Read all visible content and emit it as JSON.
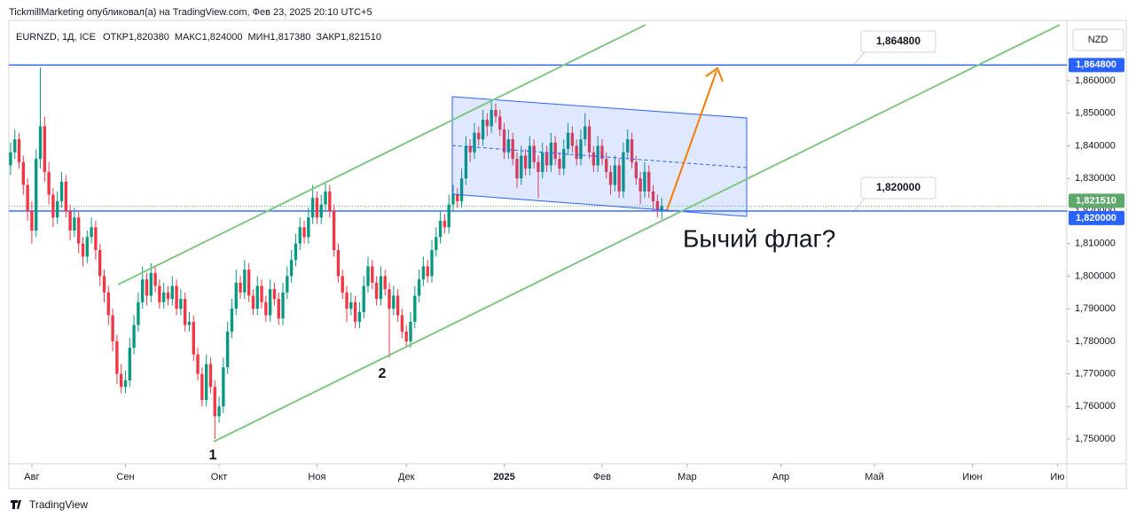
{
  "header": {
    "attribution": "TickmillMarketing опубликовал(а) на TradingView.com, Фев 23, 2025 20:10 UTC+5",
    "symbol": "EURNZD, 1Д, ICE",
    "ohlc": [
      {
        "label": "ОТКР",
        "value": "1,820380"
      },
      {
        "label": "МАКС",
        "value": "1,824000"
      },
      {
        "label": "МИН",
        "value": "1,817380"
      },
      {
        "label": "ЗАКР",
        "value": "1,821510"
      }
    ],
    "currency": "NZD",
    "footer": "TradingView"
  },
  "chart_data": {
    "type": "candlestick",
    "up_color": "#089981",
    "down_color": "#f23645",
    "grid": false,
    "xlim": [
      -0.4,
      248
    ],
    "ylim": [
      1.7424,
      1.8785
    ],
    "xticks": [
      {
        "value": 5,
        "label": "Авг"
      },
      {
        "value": 27,
        "label": "Сен"
      },
      {
        "value": 49,
        "label": "Окт"
      },
      {
        "value": 72,
        "label": "Ноя"
      },
      {
        "value": 93,
        "label": "Дек"
      },
      {
        "value": 116,
        "label": "2025"
      },
      {
        "value": 139,
        "label": "Фев"
      },
      {
        "value": 159,
        "label": "Мар"
      },
      {
        "value": 181,
        "label": "Апр"
      },
      {
        "value": 203,
        "label": "Май"
      },
      {
        "value": 226,
        "label": "Июн"
      },
      {
        "value": 246,
        "label": "Ию"
      }
    ],
    "yticks": [
      {
        "value": 1.75,
        "label": "1,750000"
      },
      {
        "value": 1.76,
        "label": "1,760000"
      },
      {
        "value": 1.77,
        "label": "1,770000"
      },
      {
        "value": 1.78,
        "label": "1,780000"
      },
      {
        "value": 1.79,
        "label": "1,790000"
      },
      {
        "value": 1.8,
        "label": "1,800000"
      },
      {
        "value": 1.81,
        "label": "1,810000"
      },
      {
        "value": 1.82,
        "label": "1,820000"
      },
      {
        "value": 1.83,
        "label": "1,830000"
      },
      {
        "value": 1.84,
        "label": "1,840000"
      },
      {
        "value": 1.85,
        "label": "1,850000"
      },
      {
        "value": 1.86,
        "label": "1,860000"
      }
    ],
    "price_lines": [
      {
        "value": 1.8648,
        "label": "1,864800",
        "color": "#2962ff",
        "style": "solid"
      },
      {
        "value": 1.82151,
        "label": "1,821510",
        "color": "#5fa86c",
        "style": "dotted"
      },
      {
        "value": 1.82,
        "label": "1,820000",
        "color": "#2962ff",
        "style": "solid"
      }
    ],
    "annotations": [
      "1",
      "2",
      "Бычий флаг?"
    ],
    "candles": [
      [
        1.834,
        1.841,
        1.831,
        1.838
      ],
      [
        1.838,
        1.845,
        1.836,
        1.842
      ],
      [
        1.842,
        1.844,
        1.833,
        1.835
      ],
      [
        1.835,
        1.837,
        1.825,
        1.828
      ],
      [
        1.828,
        1.83,
        1.817,
        1.82
      ],
      [
        1.82,
        1.823,
        1.81,
        1.814
      ],
      [
        1.814,
        1.839,
        1.812,
        1.836
      ],
      [
        1.836,
        1.864,
        1.833,
        1.846
      ],
      [
        1.846,
        1.849,
        1.829,
        1.832
      ],
      [
        1.832,
        1.835,
        1.822,
        1.825
      ],
      [
        1.825,
        1.827,
        1.815,
        1.818
      ],
      [
        1.818,
        1.826,
        1.816,
        1.823
      ],
      [
        1.823,
        1.832,
        1.821,
        1.829
      ],
      [
        1.829,
        1.831,
        1.818,
        1.82
      ],
      [
        1.82,
        1.822,
        1.811,
        1.814
      ],
      [
        1.814,
        1.821,
        1.812,
        1.818
      ],
      [
        1.818,
        1.82,
        1.807,
        1.81
      ],
      [
        1.81,
        1.812,
        1.803,
        1.806
      ],
      [
        1.806,
        1.814,
        1.804,
        1.812
      ],
      [
        1.812,
        1.818,
        1.81,
        1.815
      ],
      [
        1.815,
        1.817,
        1.805,
        1.808
      ],
      [
        1.808,
        1.81,
        1.797,
        1.8
      ],
      [
        1.8,
        1.802,
        1.792,
        1.795
      ],
      [
        1.795,
        1.797,
        1.785,
        1.788
      ],
      [
        1.788,
        1.79,
        1.777,
        1.78
      ],
      [
        1.78,
        1.782,
        1.767,
        1.77
      ],
      [
        1.77,
        1.773,
        1.764,
        1.766
      ],
      [
        1.766,
        1.771,
        1.764,
        1.768
      ],
      [
        1.768,
        1.781,
        1.766,
        1.778
      ],
      [
        1.778,
        1.788,
        1.776,
        1.785
      ],
      [
        1.785,
        1.795,
        1.783,
        1.792
      ],
      [
        1.792,
        1.803,
        1.79,
        1.799
      ],
      [
        1.799,
        1.801,
        1.791,
        1.794
      ],
      [
        1.794,
        1.804,
        1.792,
        1.801
      ],
      [
        1.801,
        1.803,
        1.795,
        1.797
      ],
      [
        1.797,
        1.799,
        1.79,
        1.792
      ],
      [
        1.792,
        1.798,
        1.79,
        1.795
      ],
      [
        1.795,
        1.797,
        1.791,
        1.793
      ],
      [
        1.793,
        1.8,
        1.791,
        1.797
      ],
      [
        1.797,
        1.799,
        1.788,
        1.79
      ],
      [
        1.79,
        1.796,
        1.788,
        1.793
      ],
      [
        1.793,
        1.795,
        1.783,
        1.785
      ],
      [
        1.785,
        1.789,
        1.783,
        1.786
      ],
      [
        1.786,
        1.788,
        1.774,
        1.776
      ],
      [
        1.776,
        1.778,
        1.768,
        1.77
      ],
      [
        1.77,
        1.772,
        1.76,
        1.762
      ],
      [
        1.762,
        1.776,
        1.76,
        1.773
      ],
      [
        1.773,
        1.775,
        1.764,
        1.766
      ],
      [
        1.766,
        1.768,
        1.75,
        1.757
      ],
      [
        1.757,
        1.763,
        1.755,
        1.76
      ],
      [
        1.76,
        1.775,
        1.758,
        1.772
      ],
      [
        1.772,
        1.786,
        1.77,
        1.783
      ],
      [
        1.783,
        1.793,
        1.781,
        1.79
      ],
      [
        1.79,
        1.802,
        1.788,
        1.798
      ],
      [
        1.798,
        1.8,
        1.793,
        1.795
      ],
      [
        1.795,
        1.805,
        1.793,
        1.802
      ],
      [
        1.802,
        1.804,
        1.792,
        1.794
      ],
      [
        1.794,
        1.796,
        1.788,
        1.79
      ],
      [
        1.79,
        1.8,
        1.788,
        1.797
      ],
      [
        1.797,
        1.799,
        1.79,
        1.792
      ],
      [
        1.792,
        1.794,
        1.786,
        1.788
      ],
      [
        1.788,
        1.799,
        1.786,
        1.796
      ],
      [
        1.796,
        1.798,
        1.791,
        1.793
      ],
      [
        1.793,
        1.795,
        1.785,
        1.787
      ],
      [
        1.787,
        1.798,
        1.785,
        1.795
      ],
      [
        1.795,
        1.803,
        1.793,
        1.8
      ],
      [
        1.8,
        1.808,
        1.798,
        1.805
      ],
      [
        1.805,
        1.813,
        1.803,
        1.81
      ],
      [
        1.81,
        1.818,
        1.808,
        1.815
      ],
      [
        1.815,
        1.817,
        1.81,
        1.812
      ],
      [
        1.812,
        1.821,
        1.81,
        1.818
      ],
      [
        1.818,
        1.828,
        1.816,
        1.824
      ],
      [
        1.824,
        1.826,
        1.816,
        1.818
      ],
      [
        1.818,
        1.825,
        1.816,
        1.822
      ],
      [
        1.822,
        1.829,
        1.82,
        1.826
      ],
      [
        1.826,
        1.828,
        1.818,
        1.82
      ],
      [
        1.82,
        1.822,
        1.806,
        1.808
      ],
      [
        1.808,
        1.81,
        1.798,
        1.8
      ],
      [
        1.8,
        1.802,
        1.793,
        1.795
      ],
      [
        1.795,
        1.797,
        1.786,
        1.79
      ],
      [
        1.79,
        1.795,
        1.788,
        1.792
      ],
      [
        1.792,
        1.794,
        1.784,
        1.786
      ],
      [
        1.786,
        1.792,
        1.784,
        1.789
      ],
      [
        1.789,
        1.8,
        1.787,
        1.797
      ],
      [
        1.797,
        1.806,
        1.795,
        1.803
      ],
      [
        1.803,
        1.805,
        1.796,
        1.798
      ],
      [
        1.798,
        1.8,
        1.791,
        1.793
      ],
      [
        1.793,
        1.803,
        1.791,
        1.8
      ],
      [
        1.8,
        1.802,
        1.794,
        1.796
      ],
      [
        1.796,
        1.798,
        1.775,
        1.79
      ],
      [
        1.79,
        1.797,
        1.788,
        1.794
      ],
      [
        1.794,
        1.796,
        1.786,
        1.788
      ],
      [
        1.788,
        1.79,
        1.781,
        1.783
      ],
      [
        1.783,
        1.785,
        1.778,
        1.78
      ],
      [
        1.78,
        1.789,
        1.778,
        1.786
      ],
      [
        1.786,
        1.797,
        1.784,
        1.794
      ],
      [
        1.794,
        1.802,
        1.792,
        1.799
      ],
      [
        1.799,
        1.806,
        1.797,
        1.803
      ],
      [
        1.803,
        1.805,
        1.798,
        1.8
      ],
      [
        1.8,
        1.811,
        1.798,
        1.808
      ],
      [
        1.808,
        1.815,
        1.806,
        1.812
      ],
      [
        1.812,
        1.82,
        1.81,
        1.817
      ],
      [
        1.817,
        1.819,
        1.813,
        1.815
      ],
      [
        1.815,
        1.825,
        1.813,
        1.822
      ],
      [
        1.822,
        1.828,
        1.82,
        1.825
      ],
      [
        1.825,
        1.827,
        1.821,
        1.823
      ],
      [
        1.823,
        1.833,
        1.821,
        1.83
      ],
      [
        1.83,
        1.843,
        1.828,
        1.84
      ],
      [
        1.84,
        1.842,
        1.835,
        1.838
      ],
      [
        1.838,
        1.847,
        1.836,
        1.844
      ],
      [
        1.844,
        1.846,
        1.84,
        1.842
      ],
      [
        1.842,
        1.851,
        1.84,
        1.848
      ],
      [
        1.848,
        1.85,
        1.843,
        1.846
      ],
      [
        1.846,
        1.854,
        1.844,
        1.851
      ],
      [
        1.851,
        1.853,
        1.847,
        1.849
      ],
      [
        1.849,
        1.851,
        1.843,
        1.845
      ],
      [
        1.845,
        1.847,
        1.836,
        1.838
      ],
      [
        1.838,
        1.845,
        1.836,
        1.842
      ],
      [
        1.842,
        1.844,
        1.834,
        1.836
      ],
      [
        1.836,
        1.838,
        1.827,
        1.83
      ],
      [
        1.83,
        1.84,
        1.828,
        1.837
      ],
      [
        1.837,
        1.839,
        1.831,
        1.833
      ],
      [
        1.833,
        1.843,
        1.831,
        1.84
      ],
      [
        1.84,
        1.842,
        1.833,
        1.835
      ],
      [
        1.835,
        1.837,
        1.824,
        1.832
      ],
      [
        1.832,
        1.841,
        1.83,
        1.838
      ],
      [
        1.838,
        1.84,
        1.832,
        1.834
      ],
      [
        1.834,
        1.844,
        1.832,
        1.841
      ],
      [
        1.841,
        1.843,
        1.834,
        1.836
      ],
      [
        1.836,
        1.838,
        1.831,
        1.833
      ],
      [
        1.833,
        1.842,
        1.831,
        1.839
      ],
      [
        1.839,
        1.847,
        1.837,
        1.844
      ],
      [
        1.844,
        1.846,
        1.838,
        1.84
      ],
      [
        1.84,
        1.842,
        1.834,
        1.836
      ],
      [
        1.836,
        1.845,
        1.834,
        1.842
      ],
      [
        1.842,
        1.85,
        1.84,
        1.846
      ],
      [
        1.846,
        1.848,
        1.836,
        1.838
      ],
      [
        1.838,
        1.84,
        1.832,
        1.834
      ],
      [
        1.834,
        1.843,
        1.832,
        1.84
      ],
      [
        1.84,
        1.842,
        1.834,
        1.836
      ],
      [
        1.836,
        1.838,
        1.83,
        1.832
      ],
      [
        1.832,
        1.834,
        1.825,
        1.828
      ],
      [
        1.828,
        1.837,
        1.826,
        1.834
      ],
      [
        1.834,
        1.836,
        1.824,
        1.826
      ],
      [
        1.826,
        1.841,
        1.824,
        1.838
      ],
      [
        1.838,
        1.845,
        1.836,
        1.842
      ],
      [
        1.842,
        1.844,
        1.833,
        1.835
      ],
      [
        1.835,
        1.837,
        1.828,
        1.83
      ],
      [
        1.83,
        1.832,
        1.822,
        1.826
      ],
      [
        1.826,
        1.835,
        1.824,
        1.832
      ],
      [
        1.832,
        1.834,
        1.824,
        1.826
      ],
      [
        1.826,
        1.828,
        1.82,
        1.823
      ],
      [
        1.823,
        1.825,
        1.818,
        1.8204
      ],
      [
        1.82038,
        1.824,
        1.81738,
        1.82151
      ]
    ]
  }
}
